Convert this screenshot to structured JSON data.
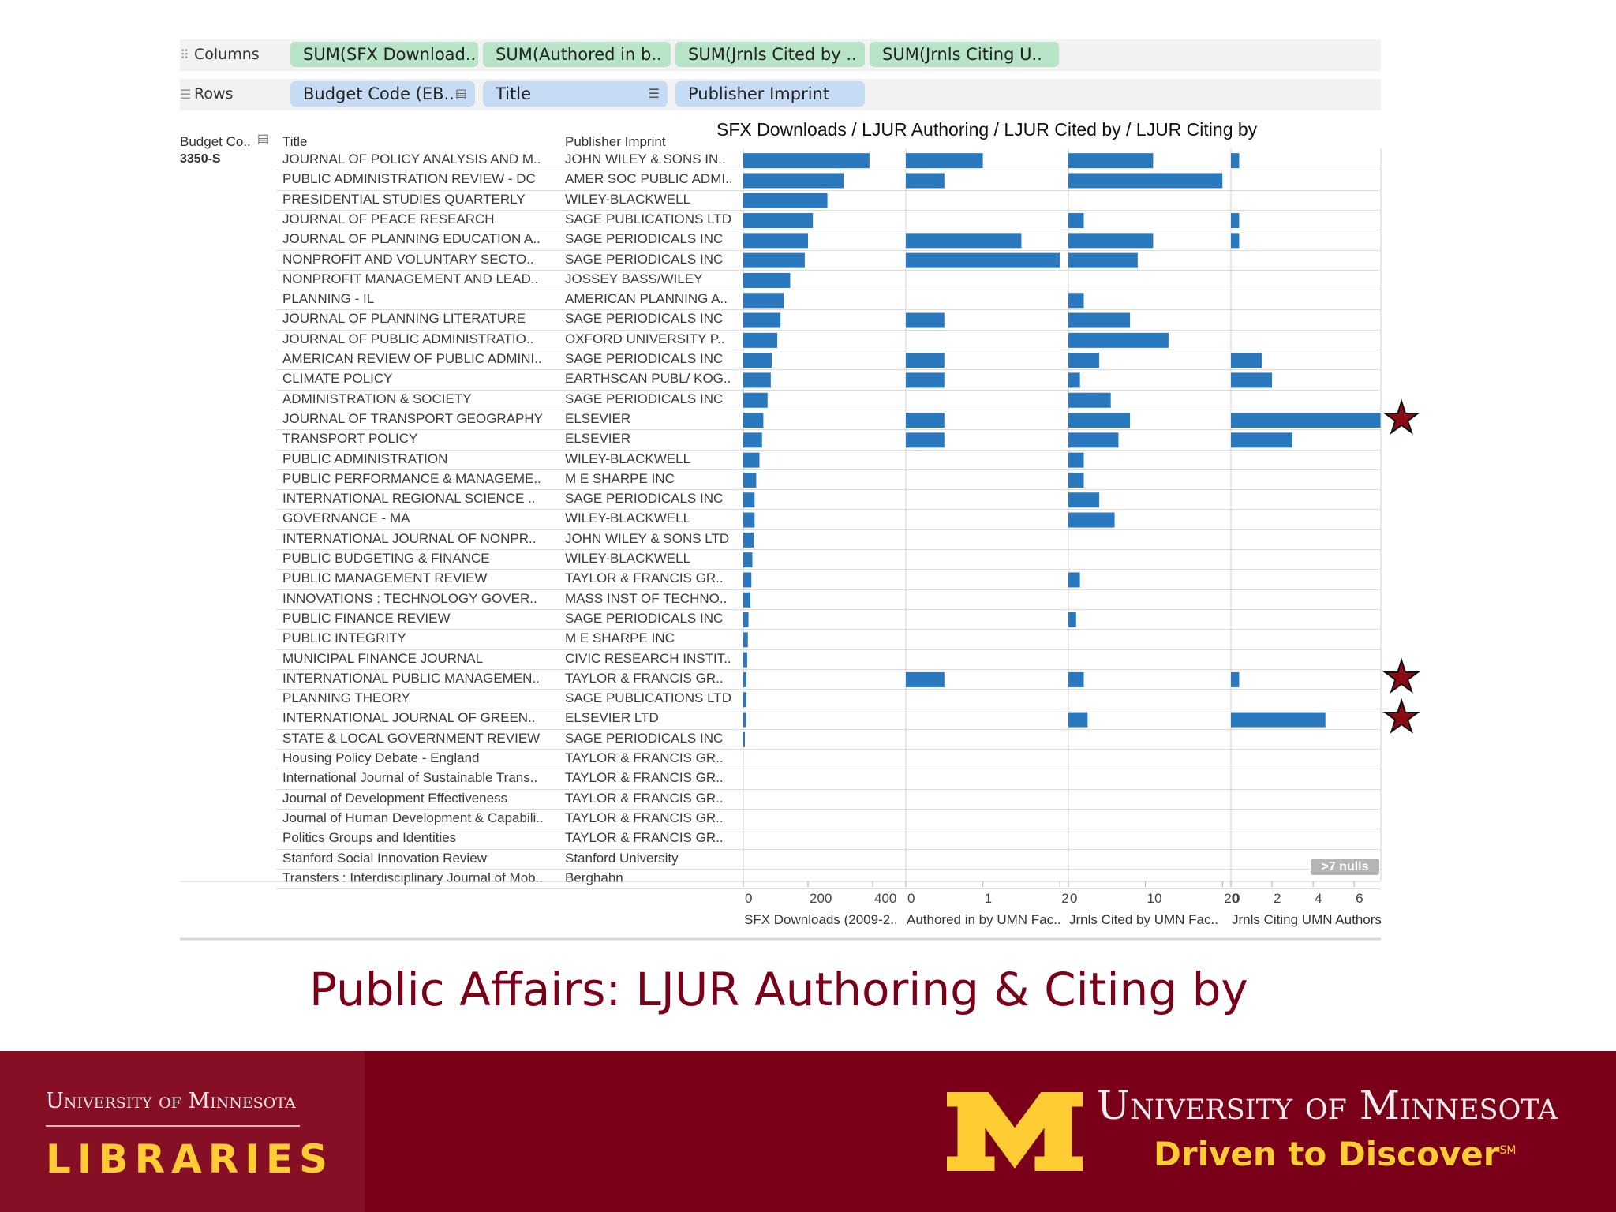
{
  "toolbar": {
    "columns_label": "Columns",
    "rows_label": "Rows",
    "column_pills": [
      "SUM(SFX Download..",
      "SUM(Authored in b..",
      "SUM(Jrnls Cited by ..",
      "SUM(Jrnls Citing U.."
    ],
    "row_pills": [
      "Budget Code (EB..",
      "Title",
      "Publisher Imprint"
    ]
  },
  "table": {
    "headers": {
      "budget_code": "Budget Co..",
      "title": "Title",
      "publisher": "Publisher Imprint"
    },
    "budget_code_value": "3350-S",
    "rows": [
      {
        "title": "JOURNAL OF POLICY ANALYSIS AND M..",
        "publisher": "JOHN WILEY & SONS IN.."
      },
      {
        "title": "PUBLIC ADMINISTRATION REVIEW - DC",
        "publisher": "AMER SOC PUBLIC ADMI.."
      },
      {
        "title": "PRESIDENTIAL STUDIES QUARTERLY",
        "publisher": "WILEY-BLACKWELL"
      },
      {
        "title": "JOURNAL OF PEACE RESEARCH",
        "publisher": "SAGE PUBLICATIONS LTD"
      },
      {
        "title": "JOURNAL OF PLANNING EDUCATION A..",
        "publisher": "SAGE PERIODICALS INC"
      },
      {
        "title": "NONPROFIT AND VOLUNTARY SECTO..",
        "publisher": "SAGE PERIODICALS INC"
      },
      {
        "title": "NONPROFIT MANAGEMENT AND LEAD..",
        "publisher": "JOSSEY BASS/WILEY"
      },
      {
        "title": "PLANNING - IL",
        "publisher": "AMERICAN PLANNING A.."
      },
      {
        "title": "JOURNAL OF PLANNING LITERATURE",
        "publisher": "SAGE PERIODICALS INC"
      },
      {
        "title": "JOURNAL OF PUBLIC ADMINISTRATIO..",
        "publisher": "OXFORD UNIVERSITY P.."
      },
      {
        "title": "AMERICAN REVIEW OF PUBLIC ADMINI..",
        "publisher": "SAGE PERIODICALS INC"
      },
      {
        "title": "CLIMATE POLICY",
        "publisher": "EARTHSCAN PUBL/ KOG.."
      },
      {
        "title": "ADMINISTRATION & SOCIETY",
        "publisher": "SAGE PERIODICALS INC"
      },
      {
        "title": "JOURNAL OF TRANSPORT GEOGRAPHY",
        "publisher": "ELSEVIER"
      },
      {
        "title": "TRANSPORT POLICY",
        "publisher": "ELSEVIER"
      },
      {
        "title": "PUBLIC ADMINISTRATION",
        "publisher": "WILEY-BLACKWELL"
      },
      {
        "title": "PUBLIC PERFORMANCE & MANAGEME..",
        "publisher": "M E SHARPE INC"
      },
      {
        "title": "INTERNATIONAL REGIONAL SCIENCE ..",
        "publisher": "SAGE PERIODICALS INC"
      },
      {
        "title": "GOVERNANCE - MA",
        "publisher": "WILEY-BLACKWELL"
      },
      {
        "title": "INTERNATIONAL JOURNAL OF NONPR..",
        "publisher": "JOHN WILEY & SONS LTD"
      },
      {
        "title": "PUBLIC BUDGETING & FINANCE",
        "publisher": "WILEY-BLACKWELL"
      },
      {
        "title": "PUBLIC MANAGEMENT REVIEW",
        "publisher": "TAYLOR & FRANCIS GR.."
      },
      {
        "title": "INNOVATIONS : TECHNOLOGY GOVER..",
        "publisher": "MASS INST OF TECHNO.."
      },
      {
        "title": "PUBLIC FINANCE REVIEW",
        "publisher": "SAGE PERIODICALS INC"
      },
      {
        "title": "PUBLIC INTEGRITY",
        "publisher": "M E SHARPE INC"
      },
      {
        "title": "MUNICIPAL FINANCE JOURNAL",
        "publisher": "CIVIC RESEARCH INSTIT.."
      },
      {
        "title": "INTERNATIONAL PUBLIC MANAGEMEN..",
        "publisher": "TAYLOR & FRANCIS GR.."
      },
      {
        "title": "PLANNING THEORY",
        "publisher": "SAGE PUBLICATIONS LTD"
      },
      {
        "title": "INTERNATIONAL JOURNAL OF GREEN..",
        "publisher": "ELSEVIER LTD"
      },
      {
        "title": "STATE & LOCAL GOVERNMENT REVIEW",
        "publisher": "SAGE PERIODICALS INC"
      },
      {
        "title": "Housing Policy Debate - England",
        "publisher": "TAYLOR & FRANCIS GR.."
      },
      {
        "title": "International Journal of Sustainable Trans..",
        "publisher": "TAYLOR & FRANCIS GR.."
      },
      {
        "title": "Journal of Development Effectiveness",
        "publisher": "TAYLOR & FRANCIS GR.."
      },
      {
        "title": "Journal of Human Development & Capabili..",
        "publisher": "TAYLOR & FRANCIS GR.."
      },
      {
        "title": "Politics Groups and Identities",
        "publisher": "TAYLOR & FRANCIS GR.."
      },
      {
        "title": "Stanford Social Innovation Review",
        "publisher": "Stanford University"
      },
      {
        "title": "Transfers : Interdisciplinary Journal of Mob..",
        "publisher": "Berghahn"
      }
    ],
    "starred_titles": [
      "JOURNAL OF TRANSPORT GEOGRAPHY",
      "INTERNATIONAL PUBLIC MANAGEMEN..",
      "INTERNATIONAL JOURNAL OF GREEN.."
    ],
    "nulls_badge": ">7 nulls"
  },
  "chart_data": {
    "type": "bar",
    "title": "SFX Downloads /  LJUR Authoring /  LJUR Cited by / LJUR Citing by",
    "orientation": "horizontal",
    "bar_color": "#2a78bd",
    "grid": true,
    "panels": [
      {
        "axis_label": "SFX Downloads (2009-2..",
        "range": [
          0,
          500
        ],
        "ticks": [
          "0",
          "200",
          "400"
        ],
        "tick_values": [
          0,
          200,
          400
        ],
        "values": [
          390,
          310,
          260,
          215,
          200,
          190,
          145,
          125,
          115,
          105,
          88,
          85,
          75,
          62,
          58,
          50,
          40,
          35,
          35,
          32,
          28,
          25,
          22,
          16,
          14,
          12,
          10,
          9,
          8,
          5,
          null,
          null,
          null,
          null,
          null,
          null,
          null
        ]
      },
      {
        "axis_label": "Authored in by UMN Fac..",
        "range": [
          0,
          2.1
        ],
        "ticks": [
          "0",
          "1",
          "2"
        ],
        "tick_values": [
          0,
          1,
          2
        ],
        "values": [
          1,
          0.5,
          null,
          null,
          1.5,
          2,
          null,
          null,
          0.5,
          null,
          0.5,
          0.5,
          null,
          0.5,
          0.5,
          null,
          null,
          null,
          null,
          null,
          null,
          null,
          null,
          null,
          null,
          null,
          0.5,
          null,
          null,
          null,
          null,
          null,
          null,
          null,
          null,
          null,
          null
        ]
      },
      {
        "axis_label": "Jrnls Cited by UMN Fac..",
        "range": [
          0,
          21
        ],
        "ticks": [
          "0",
          "10",
          "20"
        ],
        "tick_values": [
          0,
          10,
          20
        ],
        "values": [
          11,
          20,
          null,
          2,
          11,
          9,
          null,
          2,
          8,
          13,
          4,
          1.5,
          5.5,
          8,
          6.5,
          2,
          2,
          4,
          6,
          null,
          null,
          1.5,
          null,
          1,
          null,
          null,
          2,
          null,
          2.5,
          null,
          null,
          null,
          null,
          null,
          null,
          null,
          null
        ]
      },
      {
        "axis_label": "Jrnls Citing UMN Authors",
        "range": [
          0,
          7.3
        ],
        "ticks": [
          "0",
          "2",
          "4",
          "6"
        ],
        "tick_values": [
          0,
          2,
          4,
          6
        ],
        "values": [
          0.4,
          null,
          null,
          0.4,
          0.4,
          null,
          null,
          null,
          null,
          null,
          1.5,
          2,
          null,
          7.3,
          3,
          null,
          null,
          null,
          null,
          null,
          null,
          null,
          null,
          null,
          null,
          null,
          0.4,
          null,
          4.6,
          null,
          null,
          null,
          null,
          null,
          null,
          null,
          null
        ]
      }
    ]
  },
  "slide": {
    "title": "Public Affairs: LJUR Authoring & Citing by"
  },
  "footer": {
    "libraries_top": "University of Minnesota",
    "libraries_bottom": "LIBRARIES",
    "umn_name": "University of Minnesota",
    "umn_tagline": "Driven to Discover",
    "umn_tagline_mark": "SM"
  }
}
